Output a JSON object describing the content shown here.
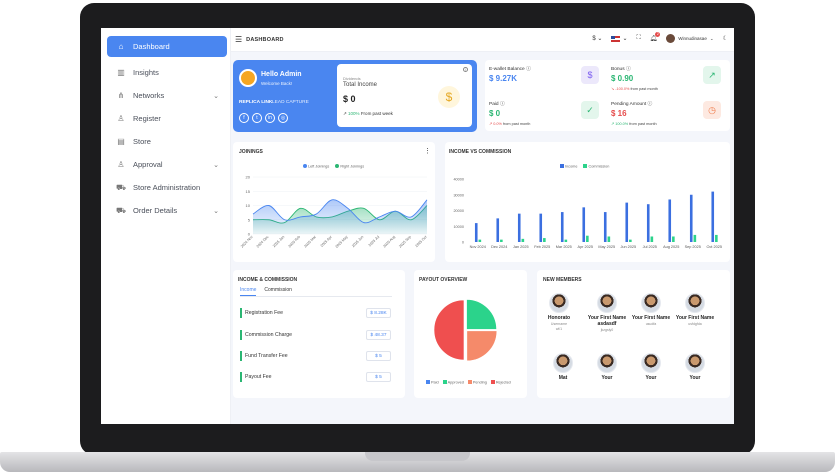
{
  "sidebar": {
    "items": [
      {
        "label": "Dashboard",
        "icon": "home-icon",
        "active": true
      },
      {
        "label": "Insights",
        "icon": "bar-chart-icon"
      },
      {
        "label": "Networks",
        "icon": "network-icon",
        "expandable": true
      },
      {
        "label": "Register",
        "icon": "user-plus-icon"
      },
      {
        "label": "Store",
        "icon": "store-icon"
      },
      {
        "label": "Approval",
        "icon": "user-check-icon",
        "expandable": true
      },
      {
        "label": "Store Administration",
        "icon": "cart-icon"
      },
      {
        "label": "Order Details",
        "icon": "cart-icon",
        "expandable": true
      }
    ]
  },
  "topbar": {
    "breadcrumb": "DASHBOARD",
    "currency": "$",
    "bell_count": "2",
    "username": "Winnudinasae"
  },
  "welcome": {
    "greeting": "Hello Admin",
    "subtitle": "Welcome Back!",
    "replica": "REPLICA LINK",
    "lead": "LEAD CAPTURE",
    "card_caption": "Dividends",
    "card_label": "Total Income",
    "card_value": "$ 0",
    "card_change": "100%",
    "card_change_text": "From past week"
  },
  "stats": [
    {
      "title": "E-wallet Balance",
      "value": "$ 9.27K",
      "value_color": "#4a86f0",
      "sub": "",
      "sub_text": "",
      "icon": "dollar-circle-icon",
      "icon_bg": "#ece8fb",
      "icon_color": "#7a5af0"
    },
    {
      "title": "Bonus",
      "value": "$ 0.90",
      "value_color": "#2bb673",
      "sub": "-100.0%",
      "sub_class": "r",
      "sub_text": "from past month",
      "icon": "chart-up-icon",
      "icon_bg": "#e3f6ec",
      "icon_color": "#2bb673"
    },
    {
      "title": "Paid",
      "value": "$ 0",
      "value_color": "#2bb673",
      "sub": "0.0%",
      "sub_class": "r",
      "sub_text": "from past month",
      "icon": "check-icon",
      "icon_bg": "#e3f6ec",
      "icon_color": "#2bb673"
    },
    {
      "title": "Pending Amount",
      "value": "$ 16",
      "value_color": "#e54b4b",
      "sub": "100.0%",
      "sub_class": "g",
      "sub_text": "from past month",
      "icon": "clock-icon",
      "icon_bg": "#fde9e1",
      "icon_color": "#ef7b4a"
    }
  ],
  "joinings": {
    "title": "JOININGS",
    "legend": [
      "Left Joinings",
      "Right Joinings"
    ],
    "colors": [
      "#4a86f0",
      "#2bb673"
    ]
  },
  "income_commission_chart": {
    "title": "INCOME VS COMMISSION",
    "legend": [
      "Income",
      "Commission"
    ],
    "colors": [
      "#3b6fe0",
      "#2bd38b"
    ]
  },
  "chart_data": [
    {
      "type": "area",
      "title": "JOININGS",
      "categories": [
        "2024 Nov",
        "2024 Dec",
        "2025 Jan",
        "2025 Feb",
        "2025 Mar",
        "2025 Apr",
        "2025 May",
        "2025 Jun",
        "2025 Jul",
        "2025 Aug",
        "2025 Sep",
        "2025 Oct"
      ],
      "ylim": [
        0,
        20
      ],
      "yticks": [
        "0",
        "5",
        "10",
        "15",
        "20"
      ],
      "series": [
        {
          "name": "Left Joinings",
          "values": [
            7,
            10,
            5,
            6,
            7,
            12,
            9,
            4,
            6,
            8,
            6,
            12
          ]
        },
        {
          "name": "Right Joinings",
          "values": [
            5,
            5,
            4,
            9,
            6,
            6,
            8,
            9,
            5,
            8,
            5,
            10
          ]
        }
      ]
    },
    {
      "type": "bar",
      "title": "INCOME VS COMMISSION",
      "categories": [
        "Nov 2024",
        "Dec 2024",
        "Jan 2025",
        "Feb 2025",
        "Mar 2025",
        "Apr 2025",
        "May 2025",
        "Jun 2025",
        "Jul 2025",
        "Aug 2025",
        "Sep 2025",
        "Oct 2025"
      ],
      "ylim": [
        0,
        40000
      ],
      "yticks": [
        "0",
        "10000",
        "20000",
        "30000",
        "40000"
      ],
      "series": [
        {
          "name": "Income",
          "values": [
            12000,
            15000,
            18000,
            18000,
            19000,
            22000,
            19000,
            25000,
            24000,
            27000,
            30000,
            32000
          ]
        },
        {
          "name": "Commission",
          "values": [
            1500,
            1500,
            2000,
            2500,
            1500,
            4000,
            3500,
            1500,
            3500,
            3500,
            4500,
            4500
          ]
        }
      ]
    },
    {
      "type": "pie",
      "title": "PAYOUT OVERVIEW",
      "legend": [
        "Paid",
        "Approved",
        "Pending",
        "Rejected"
      ],
      "colors": [
        "#4a86f0",
        "#2bd38b",
        "#f58a6a",
        "#ef4f4f"
      ],
      "values": [
        0,
        25,
        25,
        50
      ]
    }
  ],
  "income_commission": {
    "title": "INCOME & COMMISSION",
    "tabs": [
      "Income",
      "Commission"
    ],
    "rows": [
      {
        "label": "Registration Fee",
        "amount": "$ 8.28K"
      },
      {
        "label": "Commission Charge",
        "amount": "$ 48.37"
      },
      {
        "label": "Fund Transfer Fee",
        "amount": "$ 5"
      },
      {
        "label": "Payout Fee",
        "amount": "$ 5"
      }
    ]
  },
  "payout": {
    "title": "PAYOUT OVERVIEW",
    "legend": [
      "Paid",
      "Approved",
      "Pending",
      "Rejected"
    ]
  },
  "members": {
    "title": "NEW MEMBERS",
    "list": [
      {
        "name": "Honorato",
        "username": "Username",
        "extra": "wl/1"
      },
      {
        "name": "Your First Name asdasdf",
        "username": "jkzgsly0",
        "extra": ""
      },
      {
        "name": "Your First Name",
        "username": "usudfa",
        "extra": ""
      },
      {
        "name": "Your First Name",
        "username": "usfdgfda",
        "extra": ""
      },
      {
        "name": "Mat",
        "username": "",
        "extra": ""
      },
      {
        "name": "Your",
        "username": "",
        "extra": ""
      },
      {
        "name": "Your",
        "username": "",
        "extra": ""
      },
      {
        "name": "Your",
        "username": "",
        "extra": ""
      }
    ]
  }
}
